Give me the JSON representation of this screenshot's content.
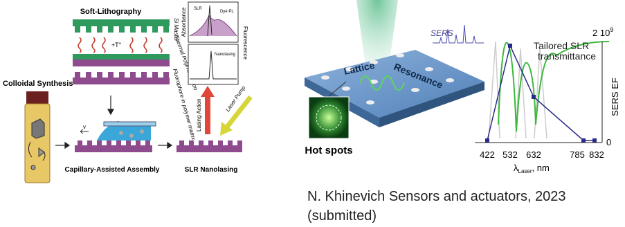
{
  "left_figure": {
    "soft_lithography": "Soft-Lithography",
    "si_master": "Si Master",
    "thermal_polymerization": "Thermal Polymerization",
    "heat": "+T°",
    "fluorophore": "Fluorophore in polymer matrix",
    "colloidal_synthesis": "Colloidal Synthesis",
    "velocity": "v",
    "capillary_assembly": "Capillary-Assisted Assembly",
    "slr_nanolasing": "SLR Nanolasing",
    "lasing_action": "Lasing Action",
    "laser_pump": "Laser Pump",
    "absorbance": "Absorbance",
    "fluorescence": "Fluorescence",
    "slr": "SLR",
    "dye_pl": "Dye PL",
    "nanolasing": "Nanolasing"
  },
  "right_figure": {
    "lattice": "Lattice",
    "resonance": "Resonance",
    "sers": "SERS",
    "hot_spots": "Hot spots",
    "curve_label": [
      "Tailored SLR",
      "transmittance"
    ],
    "y_axis_label": "SERS EF",
    "y_top": {
      "base": "2 10",
      "exponent": "9"
    },
    "y_bottom": "0",
    "x_tick_labels": [
      "422",
      "532",
      "632",
      "785",
      "832"
    ],
    "x_axis_label": {
      "symbol": "λ",
      "subscript": "Laser",
      "unit": ", nm"
    }
  },
  "caption": [
    "N. Khinevich Sensors and actuators, 2023",
    "(submitted)"
  ]
}
